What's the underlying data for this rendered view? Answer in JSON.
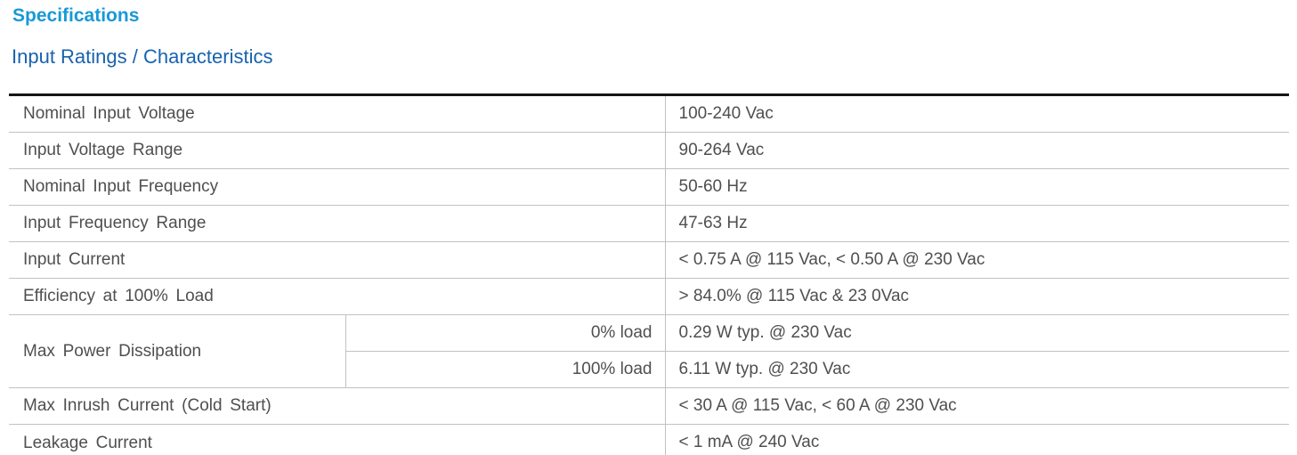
{
  "headings": {
    "section": "Specifications",
    "subsection": "Input Ratings / Characteristics"
  },
  "colors": {
    "section_title": "#1899D6",
    "subsection_title": "#1763AE",
    "table_text": "#4F4F51",
    "grid_line": "#C2C2C2",
    "heavy_border": "#151515"
  },
  "table": {
    "rows": [
      {
        "label": "Nominal Input Voltage",
        "value": "100-240 Vac"
      },
      {
        "label": "Input Voltage Range",
        "value": "90-264 Vac"
      },
      {
        "label": "Nominal Input Frequency",
        "value": "50-60 Hz"
      },
      {
        "label": "Input Frequency Range",
        "value": "47-63 Hz"
      },
      {
        "label": "Input Current",
        "value": "< 0.75 A @ 115 Vac, < 0.50 A @ 230 Vac"
      },
      {
        "label": "Efficiency at 100% Load",
        "value": "> 84.0% @ 115 Vac & 23 0Vac"
      },
      {
        "label": "Max Power Dissipation",
        "sub_rows": [
          {
            "condition": "0% load",
            "value": "0.29 W typ. @ 230 Vac"
          },
          {
            "condition": "100% load",
            "value": "6.11 W typ. @ 230 Vac"
          }
        ]
      },
      {
        "label": "Max Inrush Current (Cold Start)",
        "value": "< 30 A @ 115 Vac, < 60 A @ 230 Vac"
      },
      {
        "label": "Leakage Current",
        "value": "< 1 mA @ 240 Vac"
      }
    ]
  }
}
